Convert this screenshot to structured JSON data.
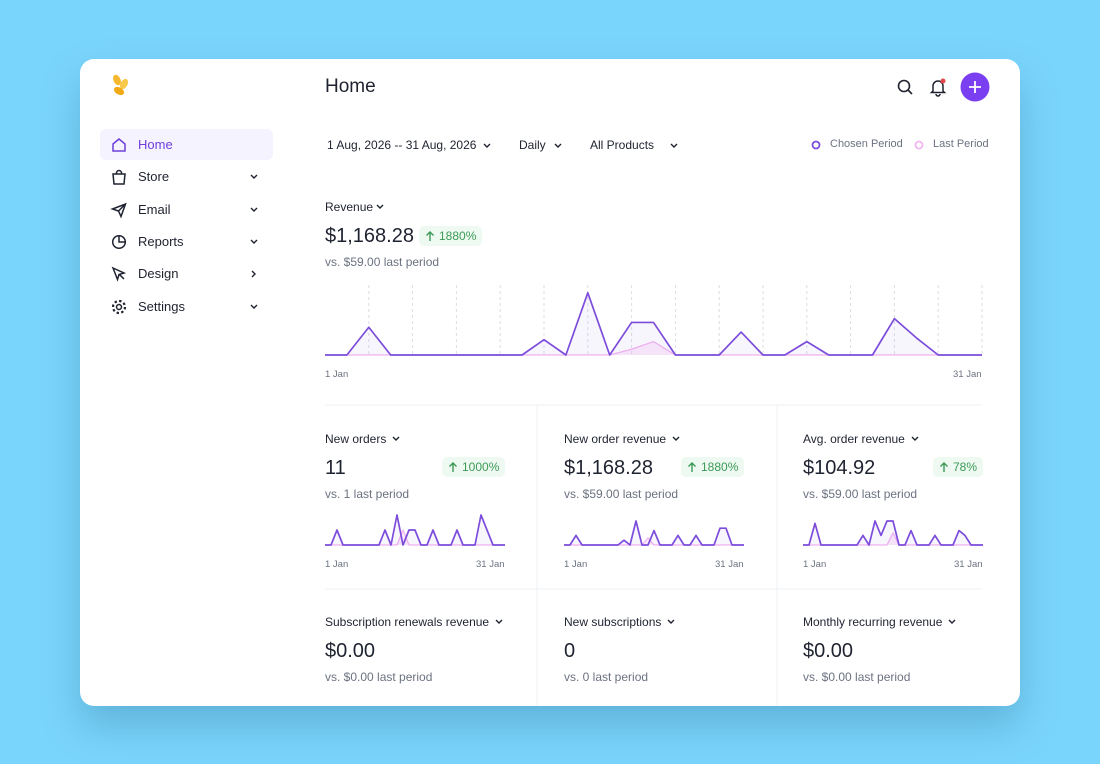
{
  "header": {
    "title": "Home"
  },
  "nav": [
    {
      "label": "Home",
      "chevron": "none"
    },
    {
      "label": "Store",
      "chevron": "down"
    },
    {
      "label": "Email",
      "chevron": "down"
    },
    {
      "label": "Reports",
      "chevron": "down"
    },
    {
      "label": "Design",
      "chevron": "right"
    },
    {
      "label": "Settings",
      "chevron": "down"
    }
  ],
  "filters": {
    "date_range": "1 Aug, 2026 -- 31 Aug, 2026",
    "interval": "Daily",
    "products": "All Products"
  },
  "revenue": {
    "label": "Revenue",
    "value": "$1,168.28",
    "change": "1880%",
    "comparison": "vs. $59.00 last period",
    "chart": {
      "type": "line",
      "x_start": "1 Jan",
      "x_end": "31 Jan",
      "ylim": [
        0,
        70
      ],
      "series": [
        {
          "name": "Chosen Period",
          "color": "#7c4ddb",
          "values": [
            0,
            0,
            29,
            0,
            0,
            0,
            0,
            0,
            0,
            0,
            16,
            0,
            65,
            0,
            34,
            34,
            0,
            0,
            0,
            24,
            0,
            0,
            14,
            0,
            0,
            0,
            38,
            18,
            0,
            0,
            0
          ]
        },
        {
          "name": "Last Period",
          "color": "#f3b5f0",
          "values": [
            0,
            0,
            0,
            0,
            0,
            0,
            0,
            0,
            0,
            0,
            0,
            0,
            0,
            0,
            6,
            14,
            0,
            0,
            0,
            0,
            0,
            0,
            0,
            0,
            0,
            0,
            0,
            0,
            0,
            0,
            0
          ]
        }
      ]
    }
  },
  "metrics": [
    {
      "label": "New orders",
      "value": "11",
      "change": "1000%",
      "comparison": "vs. 1 last period",
      "chart": {
        "type": "line",
        "x_start": "1 Jan",
        "x_end": "31 Jan",
        "ylim": [
          0,
          2
        ],
        "series": [
          {
            "name": "Chosen Period",
            "color": "#7c4ddb",
            "values": [
              0,
              0,
              1,
              0,
              0,
              0,
              0,
              0,
              0,
              0,
              1,
              0,
              2,
              0,
              1,
              1,
              0,
              0,
              1,
              0,
              0,
              0,
              1,
              0,
              0,
              0,
              2,
              1,
              0,
              0,
              0
            ]
          },
          {
            "name": "Last Period",
            "color": "#f3b5f0",
            "values": [
              0,
              0,
              0,
              0,
              0,
              0,
              0,
              0,
              0,
              0,
              0,
              0,
              0,
              1,
              0,
              0,
              0,
              0,
              0,
              0,
              0,
              0,
              0,
              0,
              0,
              0,
              0,
              0,
              0,
              0,
              0
            ]
          }
        ]
      }
    },
    {
      "label": "New order revenue",
      "value": "$1,168.28",
      "change": "1880%",
      "comparison": "vs. $59.00 last period",
      "chart": {
        "type": "line",
        "x_start": "1 Jan",
        "x_end": "31 Jan",
        "ylim": [
          0,
          25
        ],
        "series": [
          {
            "name": "Chosen Period",
            "color": "#7c4ddb",
            "values": [
              0,
              0,
              8,
              0,
              0,
              0,
              0,
              0,
              0,
              0,
              4,
              0,
              20,
              0,
              0,
              12,
              0,
              0,
              0,
              8,
              0,
              0,
              8,
              0,
              0,
              0,
              14,
              14,
              0,
              0,
              0
            ]
          },
          {
            "name": "Last Period",
            "color": "#f3b5f0",
            "values": [
              0,
              0,
              0,
              0,
              0,
              0,
              0,
              0,
              0,
              0,
              0,
              0,
              0,
              0,
              6,
              0,
              0,
              0,
              0,
              0,
              0,
              0,
              0,
              0,
              0,
              0,
              0,
              0,
              0,
              0,
              0
            ]
          }
        ]
      }
    },
    {
      "label": "Avg. order revenue",
      "value": "$104.92",
      "change": "78%",
      "comparison": "vs. $59.00 last period",
      "chart": {
        "type": "line",
        "x_start": "1 Jan",
        "x_end": "31 Jan",
        "ylim": [
          0,
          25
        ],
        "series": [
          {
            "name": "Chosen Period",
            "color": "#7c4ddb",
            "values": [
              0,
              0,
              18,
              0,
              0,
              0,
              0,
              0,
              0,
              0,
              8,
              0,
              20,
              8,
              20,
              20,
              0,
              0,
              12,
              0,
              0,
              0,
              8,
              0,
              0,
              0,
              12,
              8,
              0,
              0,
              0
            ]
          },
          {
            "name": "Last Period",
            "color": "#f3b5f0",
            "values": [
              0,
              0,
              0,
              0,
              0,
              0,
              0,
              0,
              0,
              0,
              0,
              0,
              0,
              0,
              0,
              10,
              0,
              0,
              0,
              0,
              0,
              0,
              0,
              0,
              0,
              0,
              0,
              0,
              0,
              0,
              0
            ]
          }
        ]
      }
    },
    {
      "label": "Subscription renewals revenue",
      "value": "$0.00",
      "comparison": "vs. $0.00 last period"
    },
    {
      "label": "New subscriptions",
      "value": "0",
      "comparison": "vs. 0 last period"
    },
    {
      "label": "Monthly recurring revenue",
      "value": "$0.00",
      "comparison": "vs. $0.00 last period"
    }
  ]
}
